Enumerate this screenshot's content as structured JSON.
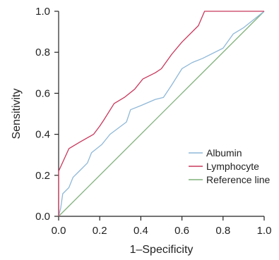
{
  "chart_data": {
    "type": "line",
    "xlabel": "1–Specificity",
    "ylabel": "Sensitivity",
    "xlim": [
      0,
      1
    ],
    "ylim": [
      0,
      1
    ],
    "xticks": [
      "0.0",
      "0.2",
      "0.4",
      "0.6",
      "0.8",
      "1.0"
    ],
    "yticks": [
      "0.0",
      "0.2",
      "0.4",
      "0.6",
      "0.8",
      "1.0"
    ],
    "grid": false,
    "legend_position": "bottom-right",
    "series": [
      {
        "name": "Albumin",
        "color": "#8fb8d8",
        "points": [
          [
            0,
            0
          ],
          [
            0.01,
            0.04
          ],
          [
            0.02,
            0.11
          ],
          [
            0.05,
            0.14
          ],
          [
            0.07,
            0.19
          ],
          [
            0.1,
            0.22
          ],
          [
            0.14,
            0.26
          ],
          [
            0.16,
            0.31
          ],
          [
            0.21,
            0.35
          ],
          [
            0.25,
            0.4
          ],
          [
            0.33,
            0.46
          ],
          [
            0.35,
            0.52
          ],
          [
            0.4,
            0.54
          ],
          [
            0.47,
            0.57
          ],
          [
            0.51,
            0.58
          ],
          [
            0.55,
            0.64
          ],
          [
            0.6,
            0.72
          ],
          [
            0.65,
            0.75
          ],
          [
            0.7,
            0.77
          ],
          [
            0.8,
            0.82
          ],
          [
            0.85,
            0.89
          ],
          [
            0.9,
            0.92
          ],
          [
            1,
            1
          ]
        ]
      },
      {
        "name": "Lymphocyte",
        "color": "#c8385c",
        "points": [
          [
            0,
            0
          ],
          [
            0,
            0.22
          ],
          [
            0.05,
            0.33
          ],
          [
            0.1,
            0.36
          ],
          [
            0.17,
            0.4
          ],
          [
            0.2,
            0.44
          ],
          [
            0.22,
            0.47
          ],
          [
            0.27,
            0.55
          ],
          [
            0.32,
            0.58
          ],
          [
            0.37,
            0.62
          ],
          [
            0.41,
            0.67
          ],
          [
            0.47,
            0.7
          ],
          [
            0.5,
            0.72
          ],
          [
            0.55,
            0.79
          ],
          [
            0.6,
            0.85
          ],
          [
            0.68,
            0.93
          ],
          [
            0.71,
            1.0
          ],
          [
            1,
            1
          ]
        ]
      },
      {
        "name": "Reference line",
        "color": "#7fb07a",
        "points": [
          [
            0,
            0
          ],
          [
            1,
            1
          ]
        ]
      }
    ]
  }
}
